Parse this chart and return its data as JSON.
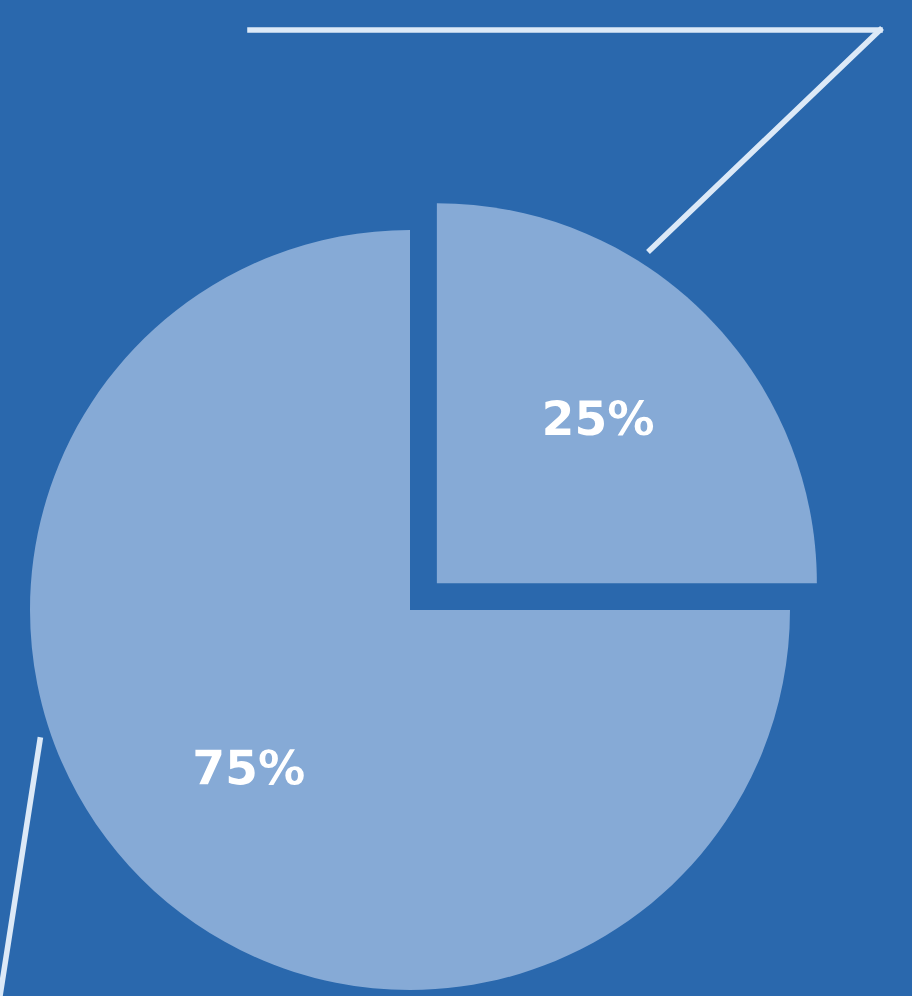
{
  "chart_data": {
    "type": "pie",
    "categories": [
      null,
      null
    ],
    "values": [
      25,
      75
    ],
    "colors": [
      "#86aad6",
      "#86aad6"
    ],
    "value_labels": [
      "25%",
      "75%"
    ]
  }
}
